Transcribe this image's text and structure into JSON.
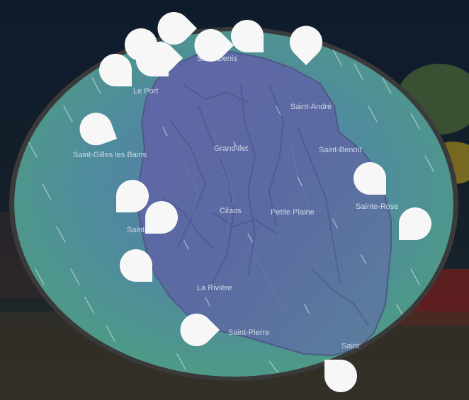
{
  "map": {
    "places": [
      {
        "id": "saint-denis",
        "name": "Saint-Denis"
      },
      {
        "id": "le-port",
        "name": "Le Port"
      },
      {
        "id": "saint-andre",
        "name": "Saint-André"
      },
      {
        "id": "saint-gilles",
        "name": "Saint-Gilles les Bains"
      },
      {
        "id": "grand-ilet",
        "name": "Grand Ilet"
      },
      {
        "id": "saint-benoit",
        "name": "Saint-Benoît"
      },
      {
        "id": "cilaos",
        "name": "Cilaos"
      },
      {
        "id": "petite-plaine",
        "name": "Petite Plaine"
      },
      {
        "id": "sainte-rose",
        "name": "Sainte-Rose"
      },
      {
        "id": "saint-leu",
        "name": "Saint-Leu"
      },
      {
        "id": "la-riviere",
        "name": "La Rivière"
      },
      {
        "id": "saint-pierre",
        "name": "Saint-Pierre"
      },
      {
        "id": "saint-philippe",
        "name": "Saint"
      }
    ],
    "pin_icon": "map-pin-icon",
    "pin_count": 16,
    "colors": {
      "outer_background": "#0c1620",
      "frame": "#3a3a3a",
      "sea_teal": "#4a8f94",
      "sea_green": "#5b9a6a",
      "land_blue": "#5e6a9e",
      "pin": "#f7f7f7"
    }
  }
}
